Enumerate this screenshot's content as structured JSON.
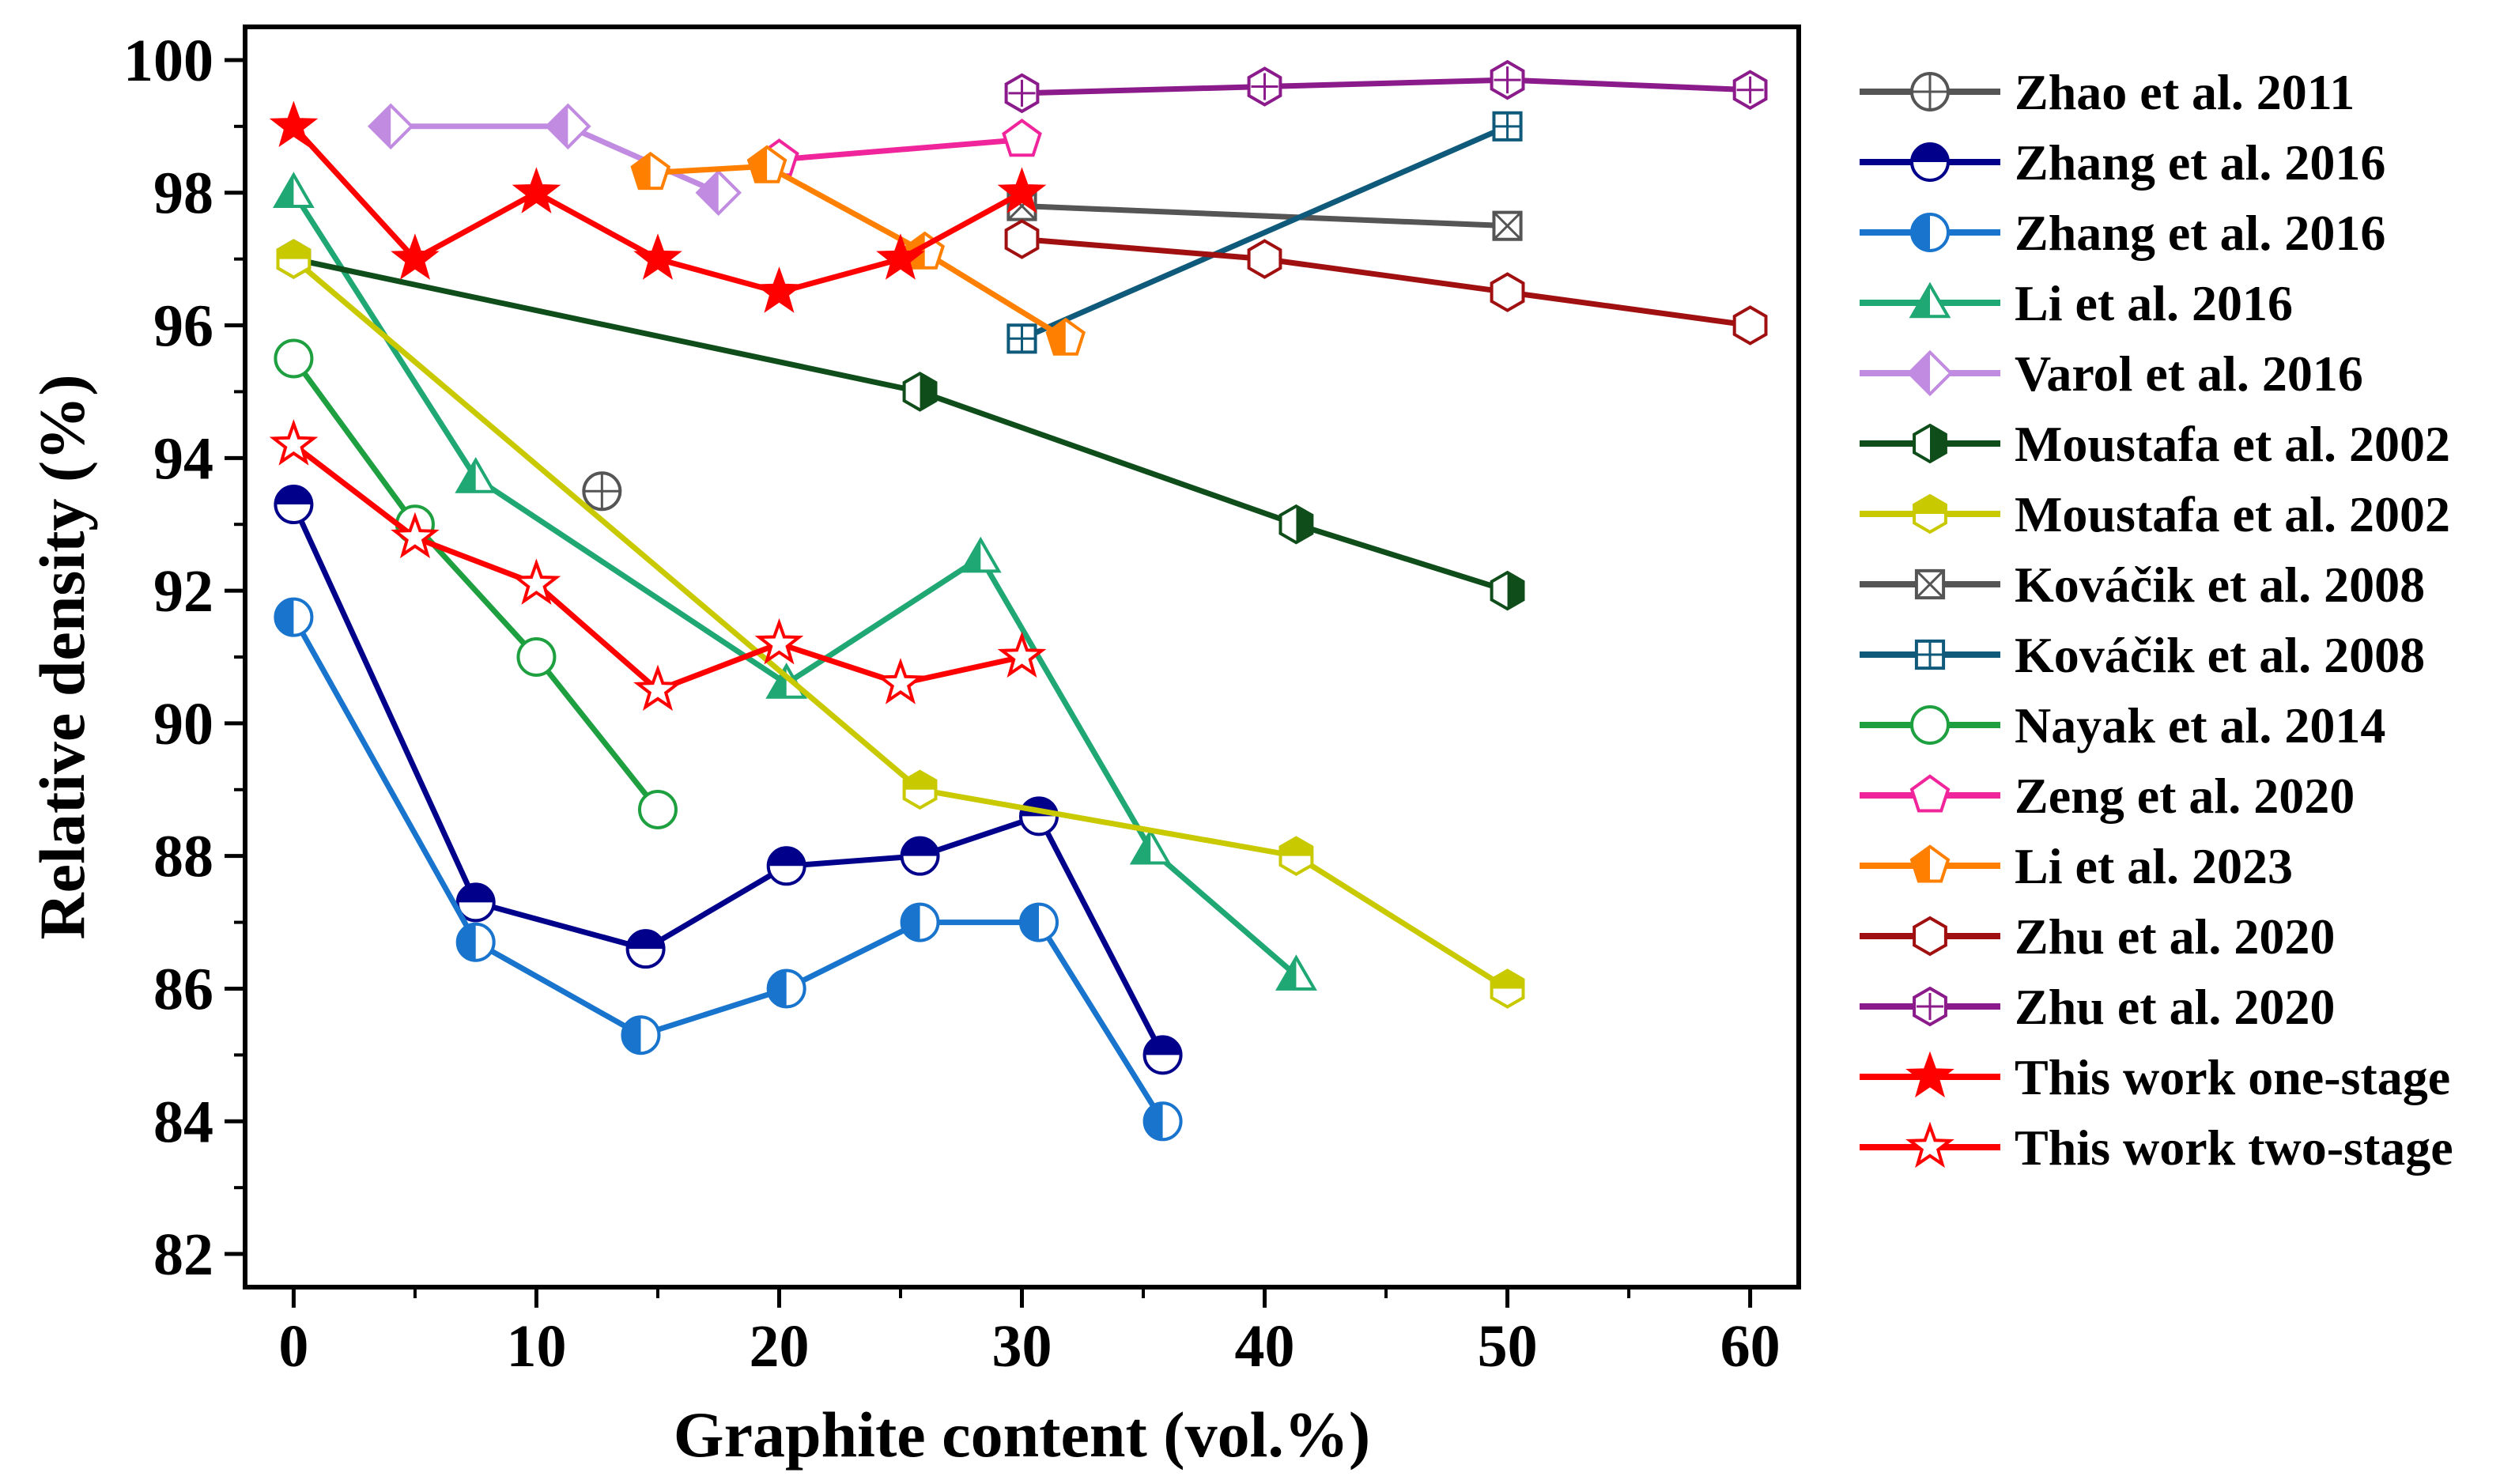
{
  "chart_data": {
    "type": "line",
    "title": "",
    "xlabel": "Graphite content (vol.%)",
    "ylabel": "Relative density (%)",
    "xlim": [
      -2,
      62
    ],
    "ylim": [
      81.5,
      100.5
    ],
    "xticks": [
      0,
      10,
      20,
      30,
      40,
      50,
      60
    ],
    "yticks": [
      82,
      84,
      86,
      88,
      90,
      92,
      94,
      96,
      98,
      100
    ],
    "grid": false,
    "legend": "outside-right",
    "series": [
      {
        "name": "Zhao et al. 2011",
        "color": "#555555",
        "marker": "circle-plus",
        "fill": "none",
        "points": [
          [
            12.7,
            93.5
          ]
        ]
      },
      {
        "name": "Zhang et al. 2016",
        "color": "#00008B",
        "marker": "circle-half-top",
        "fill": "#00008B",
        "points": [
          [
            0,
            93.3
          ],
          [
            7.5,
            87.3
          ],
          [
            14.5,
            86.6
          ],
          [
            20.3,
            87.85
          ],
          [
            25.8,
            88.0
          ],
          [
            30.7,
            88.6
          ],
          [
            35.8,
            85.0
          ]
        ]
      },
      {
        "name": "Zhang et al. 2016",
        "color": "#1874CD",
        "marker": "circle-half-left",
        "fill": "#1874CD",
        "points": [
          [
            0,
            91.6
          ],
          [
            7.5,
            86.7
          ],
          [
            14.3,
            85.3
          ],
          [
            20.3,
            86.0
          ],
          [
            25.8,
            87.0
          ],
          [
            30.7,
            87.0
          ],
          [
            35.8,
            84.0
          ]
        ]
      },
      {
        "name": "Li et al. 2016",
        "color": "#1FA774",
        "marker": "triangle-half",
        "fill": "#1FA774",
        "points": [
          [
            0,
            98.0
          ],
          [
            7.5,
            93.7
          ],
          [
            20.3,
            90.6
          ],
          [
            28.3,
            92.5
          ],
          [
            35.3,
            88.1
          ],
          [
            41.3,
            86.2
          ]
        ]
      },
      {
        "name": "Varol et al. 2016",
        "color": "#C08BE0",
        "marker": "diamond-half",
        "fill": "#C08BE0",
        "points": [
          [
            4.0,
            99.0
          ],
          [
            11.3,
            99.0
          ],
          [
            17.5,
            98.0
          ]
        ]
      },
      {
        "name": "Moustafa et al. 2002",
        "color": "#0F4D1A",
        "marker": "hexagon-half-right",
        "fill": "#0F4D1A",
        "points": [
          [
            0,
            97.0
          ],
          [
            25.8,
            95.0
          ],
          [
            41.3,
            93.0
          ],
          [
            50.0,
            92.0
          ]
        ]
      },
      {
        "name": "Moustafa et al. 2002",
        "color": "#C9C900",
        "marker": "hexagon-half-top",
        "fill": "#C9C900",
        "points": [
          [
            0,
            97.0
          ],
          [
            25.8,
            89.0
          ],
          [
            41.3,
            88.0
          ],
          [
            50.0,
            86.0
          ]
        ]
      },
      {
        "name": "Kováčik et al. 2008",
        "color": "#555555",
        "marker": "square-x",
        "fill": "none",
        "points": [
          [
            30.0,
            97.8
          ],
          [
            50.0,
            97.5
          ]
        ]
      },
      {
        "name": "Kováčik et al. 2008",
        "color": "#0F5A7A",
        "marker": "square-plus",
        "fill": "none",
        "points": [
          [
            30.0,
            95.8
          ],
          [
            50.0,
            99.0
          ]
        ]
      },
      {
        "name": "Nayak et al. 2014",
        "color": "#1FA040",
        "marker": "circle-open",
        "fill": "none",
        "points": [
          [
            0,
            95.5
          ],
          [
            5.0,
            93.0
          ],
          [
            10.0,
            91.0
          ],
          [
            15.0,
            88.7
          ]
        ]
      },
      {
        "name": "Zeng et al. 2020",
        "color": "#F0249B",
        "marker": "pentagon-open",
        "fill": "none",
        "points": [
          [
            20.0,
            98.5
          ],
          [
            30.0,
            98.8
          ]
        ]
      },
      {
        "name": "Li et al. 2023",
        "color": "#FF8000",
        "marker": "pentagon-half",
        "fill": "#FF8000",
        "points": [
          [
            14.7,
            98.3
          ],
          [
            19.5,
            98.4
          ],
          [
            26.0,
            97.1
          ],
          [
            31.8,
            95.8
          ]
        ]
      },
      {
        "name": "Zhu et al. 2020",
        "color": "#A01010",
        "marker": "hexagon-open",
        "fill": "none",
        "points": [
          [
            30.0,
            97.3
          ],
          [
            40.0,
            97.0
          ],
          [
            50.0,
            96.5
          ],
          [
            60.0,
            96.0
          ]
        ]
      },
      {
        "name": "Zhu et al. 2020",
        "color": "#8B1A8B",
        "marker": "hexagon-plus",
        "fill": "none",
        "points": [
          [
            30.0,
            99.5
          ],
          [
            40.0,
            99.6
          ],
          [
            50.0,
            99.7
          ],
          [
            60.0,
            99.55
          ]
        ]
      },
      {
        "name": "This work one-stage",
        "color": "#FF0000",
        "marker": "star-filled",
        "fill": "#FF0000",
        "points": [
          [
            0,
            99.0
          ],
          [
            5.0,
            97.0
          ],
          [
            10.0,
            98.0
          ],
          [
            15.0,
            97.0
          ],
          [
            20.0,
            96.5
          ],
          [
            25.0,
            97.0
          ],
          [
            30.0,
            98.0
          ]
        ]
      },
      {
        "name": "This work two-stage",
        "color": "#FF0000",
        "marker": "star-open",
        "fill": "none",
        "points": [
          [
            0,
            94.2
          ],
          [
            5.0,
            92.8
          ],
          [
            10.0,
            92.1
          ],
          [
            15.0,
            90.5
          ],
          [
            20.0,
            91.2
          ],
          [
            25.0,
            90.6
          ],
          [
            30.0,
            91.0
          ]
        ]
      }
    ]
  }
}
